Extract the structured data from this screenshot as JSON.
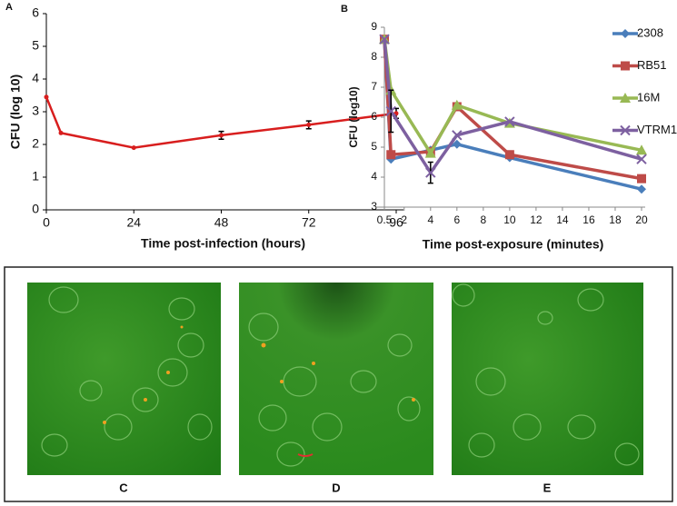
{
  "chart_data": [
    {
      "type": "line",
      "label": "A",
      "ylabel": "CFU (log 10)",
      "xlabel": "Time post-infection (hours)",
      "x": [
        0,
        4,
        24,
        48,
        72,
        96
      ],
      "values": [
        3.45,
        2.35,
        1.9,
        2.28,
        2.6,
        2.95
      ],
      "errors": [
        null,
        null,
        null,
        0.12,
        0.12,
        0.15
      ],
      "color": "#d81e1e",
      "xlim": [
        0,
        97
      ],
      "xticks": [
        0,
        24,
        48,
        72,
        96
      ],
      "ylim": [
        0,
        6
      ],
      "yticks": [
        0,
        1,
        2,
        3,
        4,
        5,
        6
      ]
    },
    {
      "type": "line",
      "label": "B",
      "ylabel": "CFU (log10)",
      "xlabel": "Time post-exposure (minutes)",
      "x": [
        0.5,
        1,
        4,
        6,
        10,
        20
      ],
      "series": [
        {
          "name": "2308",
          "color": "#4a7ebb",
          "marker": "diamond",
          "values": [
            8.6,
            4.6,
            4.9,
            5.1,
            4.65,
            3.6
          ]
        },
        {
          "name": "RB51",
          "color": "#be4b48",
          "marker": "square",
          "values": [
            8.6,
            4.75,
            4.85,
            6.35,
            4.75,
            3.95
          ]
        },
        {
          "name": "16M",
          "color": "#98b954",
          "marker": "triangle",
          "values": [
            8.6,
            6.9,
            4.8,
            6.4,
            5.8,
            4.9
          ]
        },
        {
          "name": "VTRM1",
          "color": "#7d60a0",
          "marker": "cross",
          "values": [
            8.6,
            6.2,
            4.15,
            5.4,
            5.85,
            4.6
          ],
          "errors": [
            null,
            0.7,
            0.35,
            null,
            null,
            null
          ]
        }
      ],
      "xlim": [
        0.5,
        20
      ],
      "xticks": [
        0.5,
        2,
        4,
        6,
        8,
        10,
        12,
        14,
        16,
        18,
        20
      ],
      "ylim": [
        3,
        9
      ],
      "yticks": [
        3,
        4,
        5,
        6,
        7,
        8,
        9
      ],
      "legend": "right"
    }
  ],
  "panels": {
    "labels": [
      "C",
      "D",
      "E"
    ]
  }
}
